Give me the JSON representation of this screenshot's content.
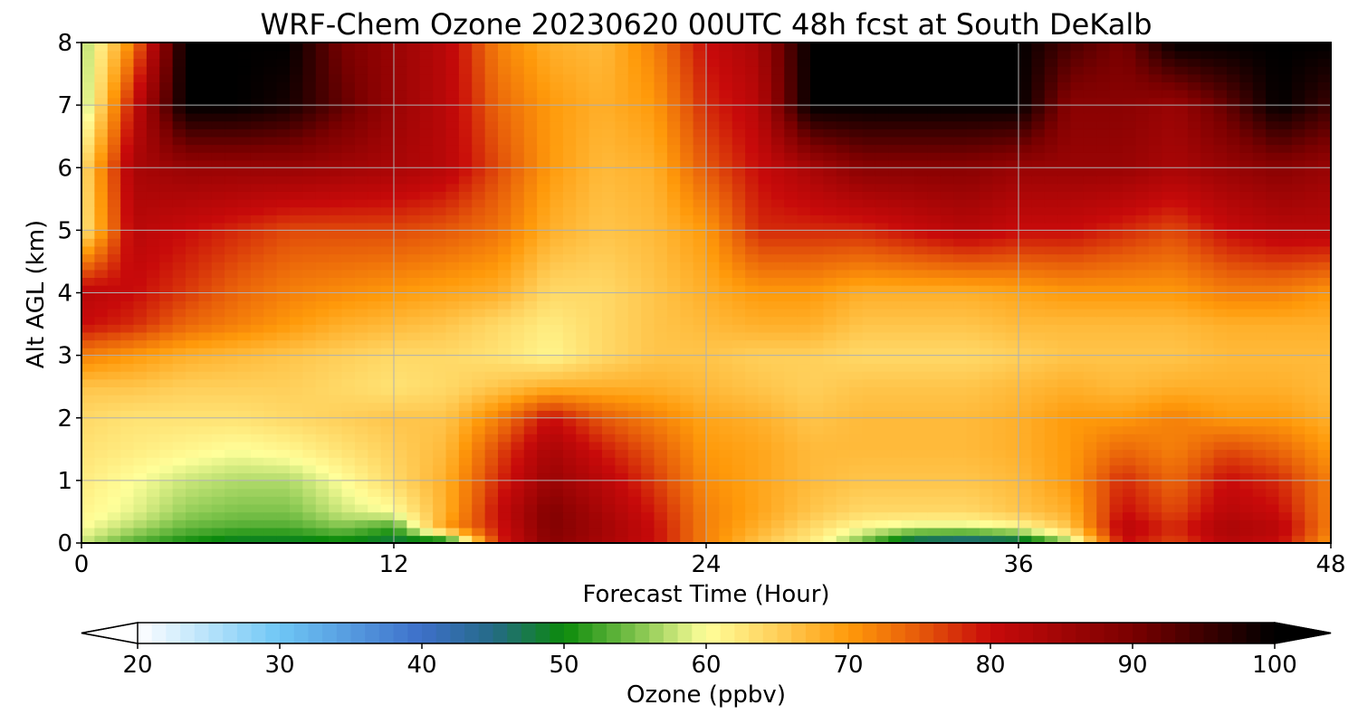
{
  "chart_data": {
    "type": "heatmap",
    "title": "WRF-Chem Ozone  20230620 00UTC 48h fcst at South DeKalb",
    "xlabel": "Forecast Time (Hour)",
    "ylabel": "Alt AGL (km)",
    "xlim": [
      0,
      48
    ],
    "ylim": [
      0,
      8
    ],
    "x_ticks": [
      0,
      12,
      24,
      36,
      48
    ],
    "y_ticks": [
      0,
      1,
      2,
      3,
      4,
      5,
      6,
      7,
      8
    ],
    "grid": true,
    "colorbar": {
      "label": "Ozone  (ppbv)",
      "range": [
        20,
        100
      ],
      "ticks": [
        20,
        30,
        40,
        50,
        60,
        70,
        80,
        90,
        100
      ],
      "extend": "both",
      "stops": [
        {
          "v": 20,
          "color": "#ffffff"
        },
        {
          "v": 30,
          "color": "#6ec6f5"
        },
        {
          "v": 40,
          "color": "#3d6fc9"
        },
        {
          "v": 45,
          "color": "#246a86"
        },
        {
          "v": 50,
          "color": "#0b8a0b"
        },
        {
          "v": 55,
          "color": "#7cc24a"
        },
        {
          "v": 60,
          "color": "#ffff9a"
        },
        {
          "v": 65,
          "color": "#ffcf5a"
        },
        {
          "v": 70,
          "color": "#ff9a0a"
        },
        {
          "v": 75,
          "color": "#e65a0a"
        },
        {
          "v": 80,
          "color": "#c80a0a"
        },
        {
          "v": 90,
          "color": "#7a0000"
        },
        {
          "v": 100,
          "color": "#000000"
        }
      ]
    },
    "altitudes_km": [
      0,
      0.25,
      0.5,
      1,
      1.5,
      2,
      2.5,
      3,
      3.5,
      4,
      5,
      6,
      7,
      8
    ],
    "hours": [
      0,
      2,
      4,
      6,
      8,
      10,
      12,
      14,
      16,
      18,
      20,
      22,
      24,
      26,
      28,
      30,
      32,
      34,
      36,
      38,
      40,
      42,
      44,
      46,
      48
    ],
    "values": [
      [
        58,
        53,
        50,
        48,
        48,
        49,
        47,
        46,
        78,
        88,
        84,
        80,
        72,
        66,
        62,
        54,
        44,
        42,
        44,
        56,
        80,
        76,
        82,
        80,
        70
      ],
      [
        60,
        57,
        54,
        53,
        53,
        55,
        52,
        70,
        79,
        89,
        85,
        80,
        72,
        68,
        64,
        60,
        58,
        58,
        60,
        66,
        82,
        78,
        84,
        82,
        72
      ],
      [
        61,
        59,
        56,
        55,
        55,
        58,
        60,
        68,
        80,
        89,
        84,
        79,
        72,
        69,
        66,
        64,
        64,
        64,
        66,
        68,
        80,
        76,
        82,
        80,
        72
      ],
      [
        62,
        60,
        58,
        57,
        57,
        60,
        64,
        68,
        78,
        86,
        82,
        77,
        71,
        69,
        67,
        66,
        66,
        66,
        67,
        70,
        78,
        74,
        80,
        78,
        72
      ],
      [
        63,
        62,
        61,
        60,
        61,
        63,
        65,
        67,
        76,
        84,
        79,
        75,
        70,
        69,
        67,
        67,
        67,
        67,
        68,
        70,
        74,
        72,
        76,
        74,
        70
      ],
      [
        64,
        63,
        63,
        63,
        64,
        65,
        66,
        66,
        72,
        80,
        75,
        72,
        69,
        68,
        66,
        67,
        67,
        67,
        68,
        70,
        70,
        72,
        70,
        70,
        68
      ],
      [
        66,
        66,
        65,
        65,
        65,
        64,
        63,
        64,
        66,
        68,
        68,
        68,
        67,
        66,
        65,
        66,
        66,
        66,
        67,
        68,
        67,
        68,
        68,
        68,
        67
      ],
      [
        72,
        70,
        68,
        67,
        66,
        65,
        64,
        64,
        63,
        61,
        64,
        66,
        66,
        65,
        65,
        64,
        64,
        64,
        65,
        66,
        66,
        66,
        67,
        67,
        67
      ],
      [
        80,
        78,
        74,
        72,
        70,
        68,
        67,
        66,
        64,
        62,
        64,
        66,
        67,
        68,
        68,
        66,
        66,
        66,
        67,
        67,
        67,
        67,
        68,
        68,
        68
      ],
      [
        82,
        80,
        77,
        74,
        72,
        71,
        70,
        69,
        68,
        64,
        64,
        66,
        68,
        70,
        70,
        68,
        68,
        68,
        69,
        70,
        70,
        70,
        72,
        72,
        70
      ],
      [
        62,
        82,
        80,
        78,
        76,
        76,
        76,
        75,
        73,
        68,
        66,
        67,
        70,
        78,
        78,
        78,
        80,
        82,
        80,
        80,
        78,
        76,
        80,
        82,
        82
      ],
      [
        63,
        84,
        86,
        86,
        86,
        85,
        84,
        82,
        76,
        70,
        67,
        68,
        75,
        80,
        84,
        88,
        88,
        88,
        86,
        86,
        86,
        84,
        86,
        88,
        86
      ],
      [
        56,
        80,
        100,
        100,
        98,
        92,
        86,
        82,
        74,
        70,
        68,
        70,
        78,
        82,
        100,
        100,
        100,
        100,
        100,
        88,
        88,
        86,
        92,
        100,
        95
      ],
      [
        56,
        72,
        100,
        100,
        100,
        90,
        86,
        82,
        72,
        68,
        67,
        72,
        80,
        84,
        100,
        100,
        100,
        100,
        100,
        94,
        90,
        100,
        100,
        100,
        100
      ]
    ]
  }
}
